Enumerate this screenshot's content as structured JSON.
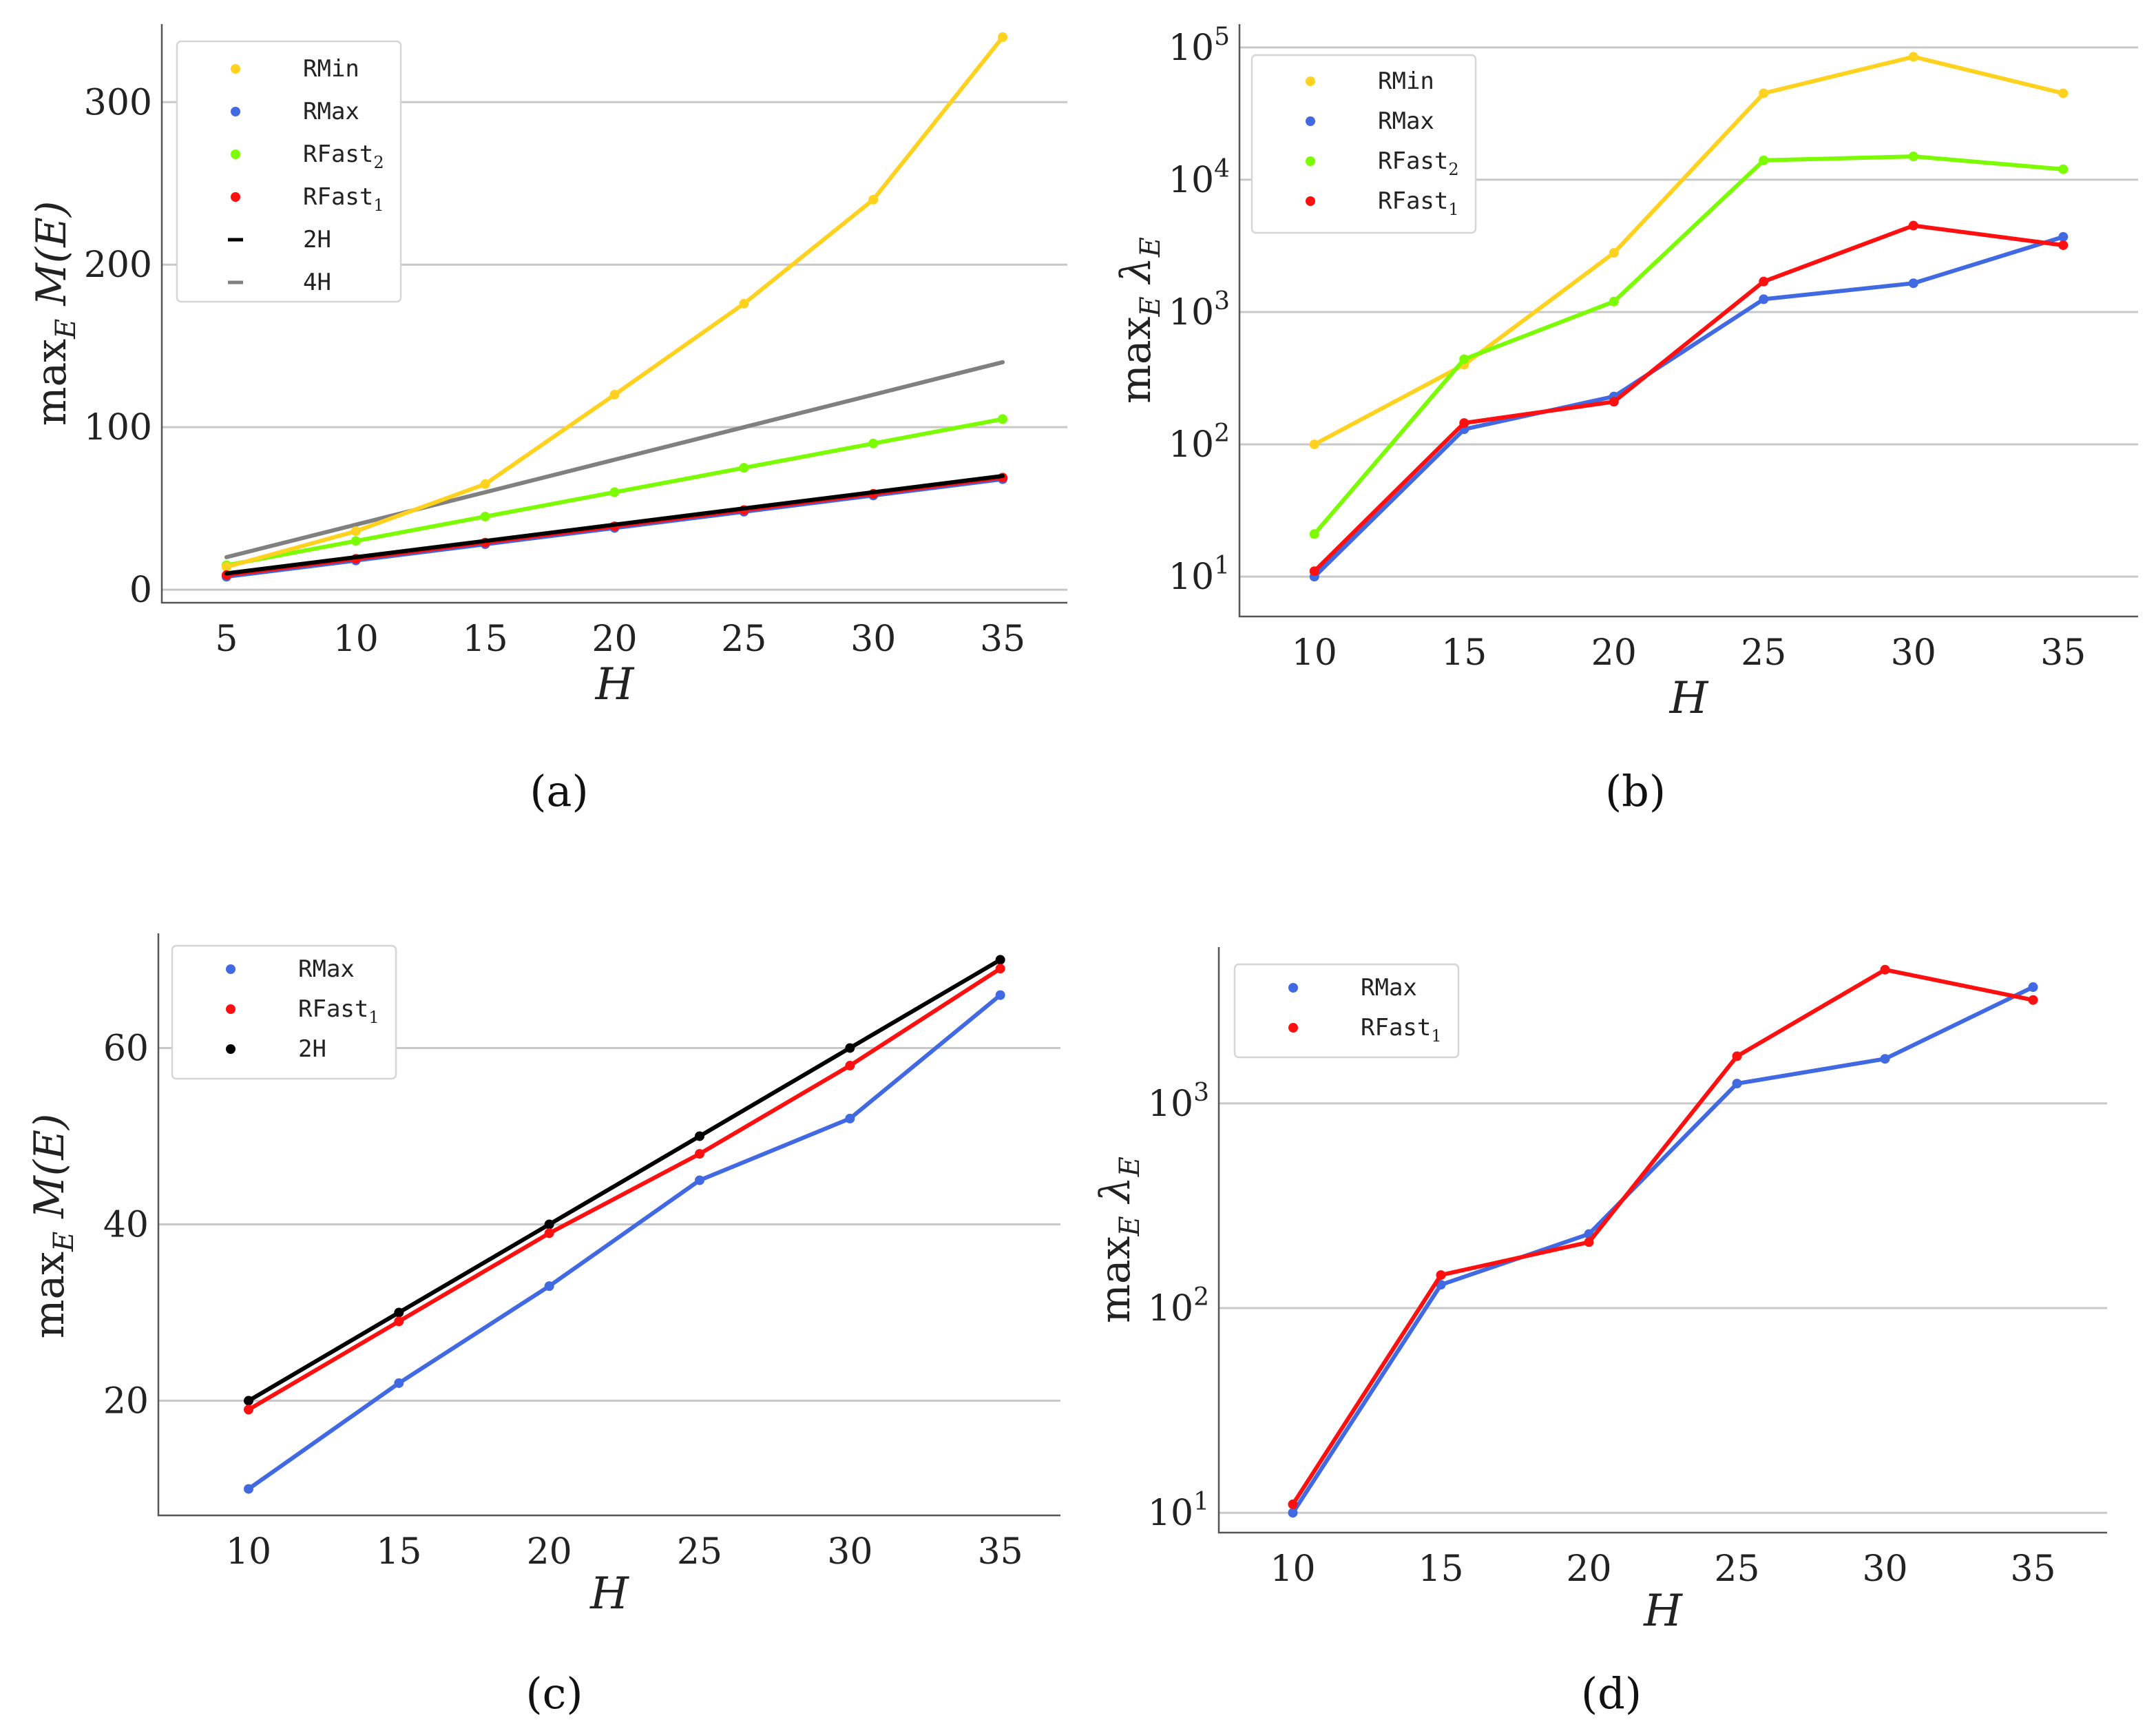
{
  "chart_data": [
    {
      "id": "a",
      "type": "line",
      "caption": "(a)",
      "xlabel": "H",
      "ylabel": "max_E M(E)",
      "ylabel_main": "max",
      "ylabel_sub": "E",
      "ylabel_rest": " M(E)",
      "yscale": "linear",
      "xlim": [
        2.5,
        37.5
      ],
      "ylim": [
        -8,
        348
      ],
      "xticks": [
        5,
        10,
        15,
        20,
        25,
        30,
        35
      ],
      "xtick_labels": [
        "5",
        "10",
        "15",
        "20",
        "25",
        "30",
        "35"
      ],
      "yticks": [
        0,
        100,
        200,
        300
      ],
      "ytick_labels": [
        "0",
        "100",
        "200",
        "300"
      ],
      "legend_position": "top-left",
      "series": [
        {
          "name": "RMin",
          "label_base": "RMin",
          "label_sub": "",
          "color": "#FFD21F",
          "markers": true,
          "x": [
            5,
            10,
            15,
            20,
            25,
            30,
            35
          ],
          "y": [
            14,
            36,
            65,
            120,
            176,
            240,
            340
          ]
        },
        {
          "name": "RMax",
          "label_base": "RMax",
          "label_sub": "",
          "color": "#4169E1",
          "markers": true,
          "x": [
            5,
            10,
            15,
            20,
            25,
            30,
            35
          ],
          "y": [
            8,
            18,
            28,
            38,
            48,
            58,
            68
          ]
        },
        {
          "name": "RFast2",
          "label_base": "RFast",
          "label_sub": "2",
          "color": "#7CFC00",
          "markers": true,
          "x": [
            5,
            10,
            15,
            20,
            25,
            30,
            35
          ],
          "y": [
            15,
            30,
            45,
            60,
            75,
            90,
            105
          ]
        },
        {
          "name": "RFast1",
          "label_base": "RFast",
          "label_sub": "1",
          "color": "#FF1010",
          "markers": true,
          "x": [
            5,
            10,
            15,
            20,
            25,
            30,
            35
          ],
          "y": [
            9,
            19,
            29,
            39,
            49,
            59,
            69
          ]
        },
        {
          "name": "2H",
          "label_base": "2H",
          "label_sub": "",
          "color": "#000000",
          "markers": false,
          "x": [
            5,
            10,
            15,
            20,
            25,
            30,
            35
          ],
          "y": [
            10,
            20,
            30,
            40,
            50,
            60,
            70
          ]
        },
        {
          "name": "4H",
          "label_base": "4H",
          "label_sub": "",
          "color": "#808080",
          "markers": false,
          "x": [
            5,
            10,
            15,
            20,
            25,
            30,
            35
          ],
          "y": [
            20,
            40,
            60,
            80,
            100,
            120,
            140
          ]
        }
      ],
      "draw_order": [
        "4H",
        "RFast2",
        "RMin",
        "RMax",
        "RFast1",
        "2H"
      ]
    },
    {
      "id": "b",
      "type": "line",
      "caption": "(b)",
      "xlabel": "H",
      "ylabel": "max_E λ_E",
      "ylabel_main": "max",
      "ylabel_sub": "E",
      "ylabel_rest": " λ",
      "ylabel_sub2": "E",
      "yscale": "log",
      "xlim": [
        7.5,
        37.5
      ],
      "ylim": [
        5,
        150000
      ],
      "xticks": [
        10,
        15,
        20,
        25,
        30,
        35
      ],
      "xtick_labels": [
        "10",
        "15",
        "20",
        "25",
        "30",
        "35"
      ],
      "yticks": [
        10,
        100,
        1000,
        10000,
        100000
      ],
      "ytick_base": "10",
      "ytick_exps": [
        "1",
        "2",
        "3",
        "4",
        "5"
      ],
      "legend_position": "top-left",
      "series": [
        {
          "name": "RMin",
          "label_base": "RMin",
          "label_sub": "",
          "color": "#FFD21F",
          "markers": true,
          "x": [
            10,
            15,
            20,
            25,
            30,
            35
          ],
          "y": [
            100,
            400,
            2800,
            45000,
            85000,
            45000
          ]
        },
        {
          "name": "RMax",
          "label_base": "RMax",
          "label_sub": "",
          "color": "#4169E1",
          "markers": true,
          "x": [
            10,
            15,
            20,
            25,
            30,
            35
          ],
          "y": [
            10,
            130,
            230,
            1250,
            1650,
            3700
          ]
        },
        {
          "name": "RFast2",
          "label_base": "RFast",
          "label_sub": "2",
          "color": "#7CFC00",
          "markers": true,
          "x": [
            10,
            15,
            20,
            25,
            30,
            35
          ],
          "y": [
            21,
            440,
            1200,
            14000,
            15000,
            12000
          ]
        },
        {
          "name": "RFast1",
          "label_base": "RFast",
          "label_sub": "1",
          "color": "#FF1010",
          "markers": true,
          "x": [
            10,
            15,
            20,
            25,
            30,
            35
          ],
          "y": [
            11,
            145,
            210,
            1700,
            4500,
            3200
          ]
        }
      ],
      "draw_order": [
        "RMin",
        "RFast2",
        "RMax",
        "RFast1"
      ]
    },
    {
      "id": "c",
      "type": "line",
      "caption": "(c)",
      "xlabel": "H",
      "ylabel": "max_E M(E)",
      "ylabel_main": "max",
      "ylabel_sub": "E",
      "ylabel_rest": " M(E)",
      "yscale": "linear",
      "xlim": [
        7,
        37
      ],
      "ylim": [
        7,
        73
      ],
      "xticks": [
        10,
        15,
        20,
        25,
        30,
        35
      ],
      "xtick_labels": [
        "10",
        "15",
        "20",
        "25",
        "30",
        "35"
      ],
      "yticks": [
        20,
        40,
        60
      ],
      "ytick_labels": [
        "20",
        "40",
        "60"
      ],
      "legend_position": "top-left",
      "series": [
        {
          "name": "RMax",
          "label_base": "RMax",
          "label_sub": "",
          "color": "#4169E1",
          "markers": true,
          "x": [
            10,
            15,
            20,
            25,
            30,
            35
          ],
          "y": [
            10,
            22,
            33,
            45,
            52,
            66
          ]
        },
        {
          "name": "RFast1",
          "label_base": "RFast",
          "label_sub": "1",
          "color": "#FF1010",
          "markers": true,
          "x": [
            10,
            15,
            20,
            25,
            30,
            35
          ],
          "y": [
            19,
            29,
            39,
            48,
            58,
            69
          ]
        },
        {
          "name": "2H",
          "label_base": "2H",
          "label_sub": "",
          "color": "#000000",
          "markers": true,
          "x": [
            10,
            15,
            20,
            25,
            30,
            35
          ],
          "y": [
            20,
            30,
            40,
            50,
            60,
            70
          ]
        }
      ],
      "draw_order": [
        "RMax",
        "2H",
        "RFast1"
      ]
    },
    {
      "id": "d",
      "type": "line",
      "caption": "(d)",
      "xlabel": "H",
      "ylabel": "max_E λ_E",
      "ylabel_main": "max",
      "ylabel_sub": "E",
      "ylabel_rest": " λ",
      "ylabel_sub2": "E",
      "yscale": "log",
      "xlim": [
        7.5,
        37.5
      ],
      "ylim": [
        8,
        5800
      ],
      "xticks": [
        10,
        15,
        20,
        25,
        30,
        35
      ],
      "xtick_labels": [
        "10",
        "15",
        "20",
        "25",
        "30",
        "35"
      ],
      "yticks": [
        10,
        100,
        1000
      ],
      "ytick_base": "10",
      "ytick_exps": [
        "1",
        "2",
        "3"
      ],
      "legend_position": "top-left",
      "series": [
        {
          "name": "RMax",
          "label_base": "RMax",
          "label_sub": "",
          "color": "#4169E1",
          "markers": true,
          "x": [
            10,
            15,
            20,
            25,
            30,
            35
          ],
          "y": [
            10,
            130,
            230,
            1250,
            1650,
            3700
          ]
        },
        {
          "name": "RFast1",
          "label_base": "RFast",
          "label_sub": "1",
          "color": "#FF1010",
          "markers": true,
          "x": [
            10,
            15,
            20,
            25,
            30,
            35
          ],
          "y": [
            11,
            145,
            210,
            1700,
            4500,
            3200
          ]
        }
      ],
      "draw_order": [
        "RMax",
        "RFast1"
      ]
    }
  ]
}
